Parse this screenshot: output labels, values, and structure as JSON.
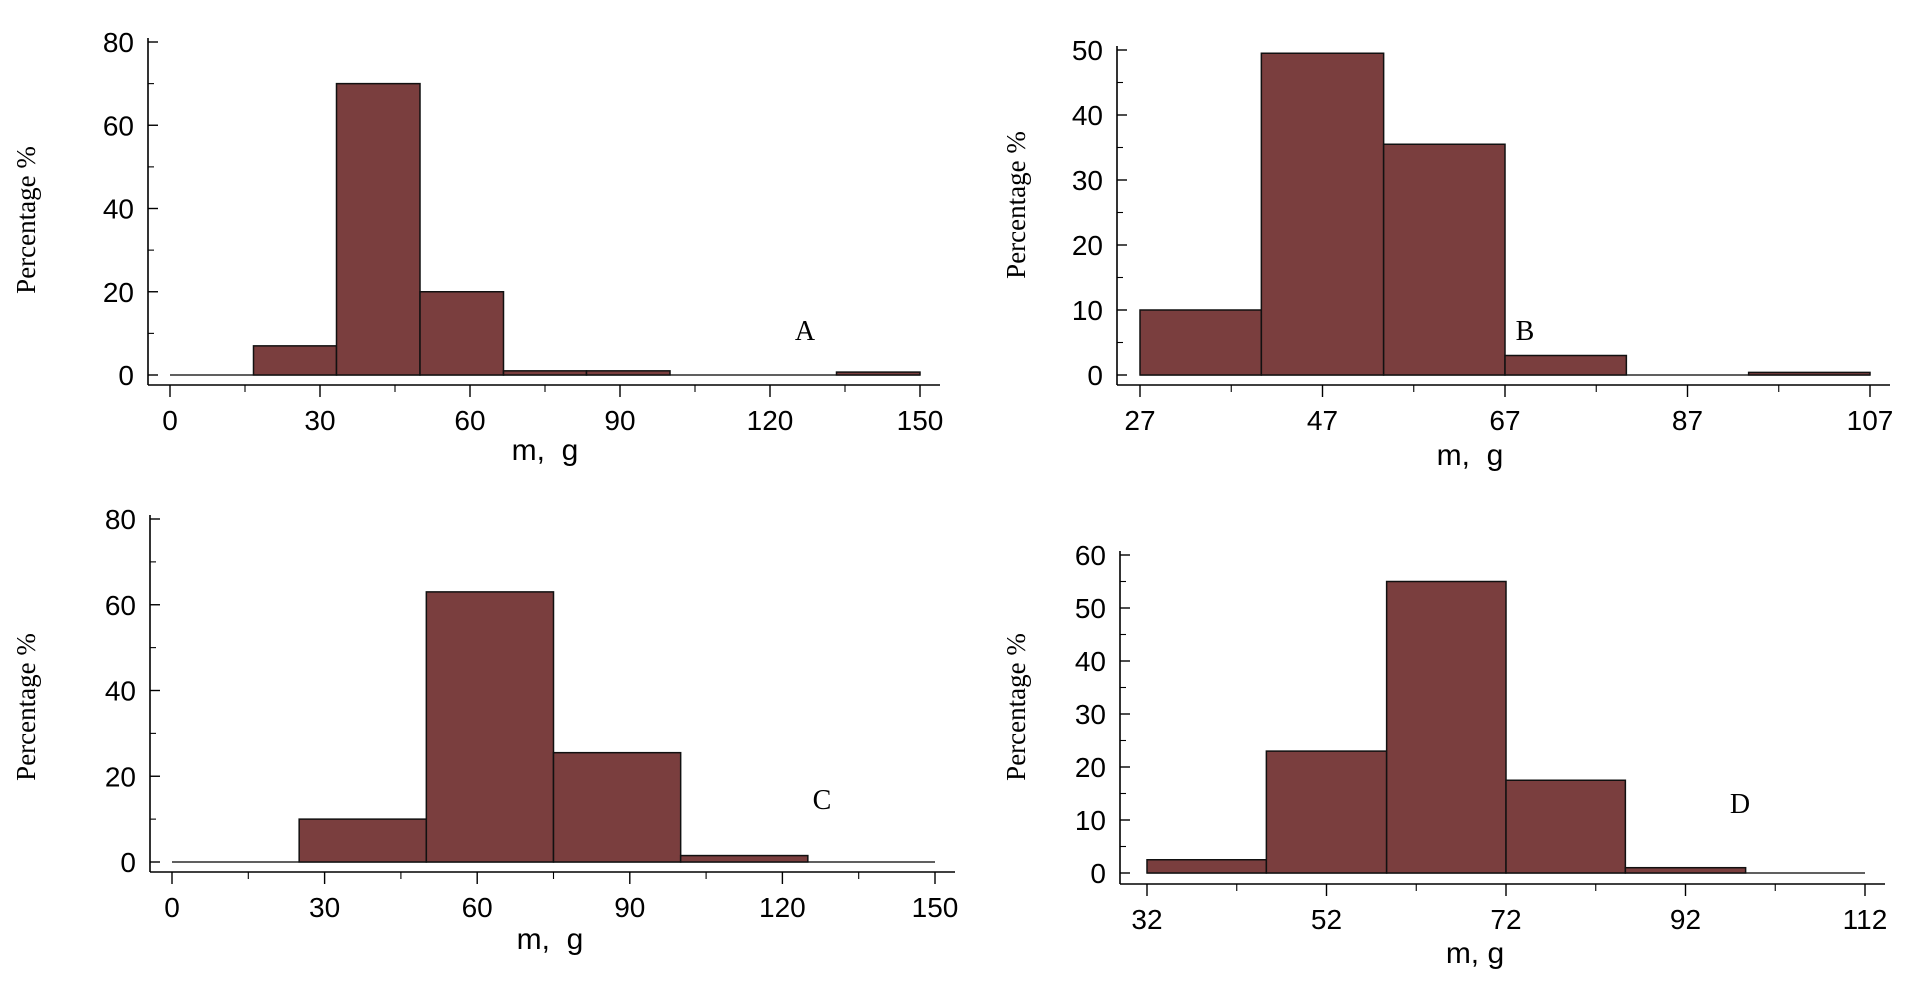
{
  "colors": {
    "bar": "#7a3e3e"
  },
  "chart_data": [
    {
      "type": "bar",
      "panel": "A",
      "xlabel": "m,  g",
      "ylabel": "Percentage %",
      "xlim": [
        0,
        150
      ],
      "ylim": [
        0,
        80
      ],
      "xticks": [
        0,
        30,
        60,
        90,
        120,
        150
      ],
      "yticks": [
        0,
        20,
        40,
        60,
        80
      ],
      "bins": [
        {
          "x0": 0,
          "x1": 16.7,
          "value": 0
        },
        {
          "x0": 16.7,
          "x1": 33.3,
          "value": 7
        },
        {
          "x0": 33.3,
          "x1": 50,
          "value": 70
        },
        {
          "x0": 50,
          "x1": 66.7,
          "value": 20
        },
        {
          "x0": 66.7,
          "x1": 83.3,
          "value": 1
        },
        {
          "x0": 83.3,
          "x1": 100,
          "value": 1
        },
        {
          "x0": 100,
          "x1": 116.7,
          "value": 0
        },
        {
          "x0": 116.7,
          "x1": 133.3,
          "value": 0
        },
        {
          "x0": 133.3,
          "x1": 150,
          "value": 0.7
        }
      ]
    },
    {
      "type": "bar",
      "panel": "B",
      "xlabel": "m,  g",
      "ylabel": "Percentage %",
      "xlim": [
        27,
        107
      ],
      "ylim": [
        0,
        50
      ],
      "xticks": [
        27,
        47,
        67,
        87,
        107
      ],
      "yticks": [
        0,
        10,
        20,
        30,
        40,
        50
      ],
      "bins": [
        {
          "x0": 27,
          "x1": 40.3,
          "value": 10
        },
        {
          "x0": 40.3,
          "x1": 53.7,
          "value": 49.5
        },
        {
          "x0": 53.7,
          "x1": 67,
          "value": 35.5
        },
        {
          "x0": 67,
          "x1": 80.3,
          "value": 3
        },
        {
          "x0": 80.3,
          "x1": 93.7,
          "value": 0
        },
        {
          "x0": 93.7,
          "x1": 107,
          "value": 0.4
        }
      ]
    },
    {
      "type": "bar",
      "panel": "C",
      "xlabel": "m,  g",
      "ylabel": "Percentage %",
      "xlim": [
        0,
        150
      ],
      "ylim": [
        0,
        80
      ],
      "xticks": [
        0,
        30,
        60,
        90,
        120,
        150
      ],
      "yticks": [
        0,
        20,
        40,
        60,
        80
      ],
      "bins": [
        {
          "x0": 0,
          "x1": 25,
          "value": 0
        },
        {
          "x0": 25,
          "x1": 50,
          "value": 10
        },
        {
          "x0": 50,
          "x1": 75,
          "value": 63
        },
        {
          "x0": 75,
          "x1": 100,
          "value": 25.5
        },
        {
          "x0": 100,
          "x1": 125,
          "value": 1.5
        },
        {
          "x0": 125,
          "x1": 150,
          "value": 0
        }
      ]
    },
    {
      "type": "bar",
      "panel": "D",
      "xlabel": "m, g",
      "ylabel": "Percentage %",
      "xlim": [
        32,
        112
      ],
      "ylim": [
        0,
        60
      ],
      "xticks": [
        32,
        52,
        72,
        92,
        112
      ],
      "yticks": [
        0,
        10,
        20,
        30,
        40,
        50,
        60
      ],
      "bins": [
        {
          "x0": 32,
          "x1": 45.3,
          "value": 2.5
        },
        {
          "x0": 45.3,
          "x1": 58.7,
          "value": 23
        },
        {
          "x0": 58.7,
          "x1": 72,
          "value": 55
        },
        {
          "x0": 72,
          "x1": 85.3,
          "value": 17.5
        },
        {
          "x0": 85.3,
          "x1": 98.7,
          "value": 1
        },
        {
          "x0": 98.7,
          "x1": 112,
          "value": 0
        }
      ]
    }
  ]
}
